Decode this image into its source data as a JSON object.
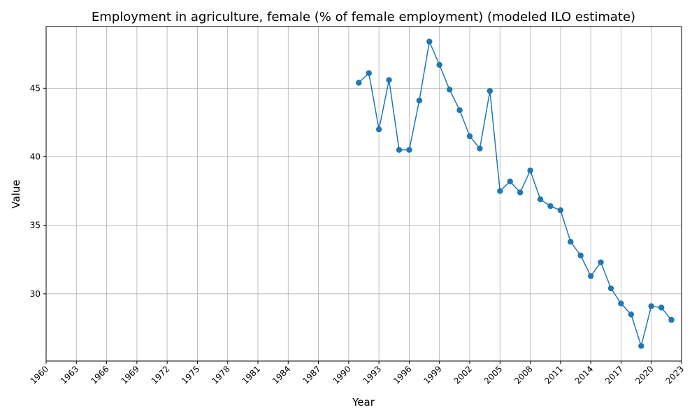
{
  "chart_data": {
    "type": "line",
    "title": "Employment in agriculture, female (% of female employment) (modeled ILO estimate)",
    "xlabel": "Year",
    "ylabel": "Value",
    "xlim": [
      1960,
      2023
    ],
    "ylim": [
      25.1,
      49.5
    ],
    "xticks": [
      1960,
      1963,
      1966,
      1969,
      1972,
      1975,
      1978,
      1981,
      1984,
      1987,
      1990,
      1993,
      1996,
      1999,
      2002,
      2005,
      2008,
      2011,
      2014,
      2017,
      2020,
      2023
    ],
    "yticks": [
      30,
      35,
      40,
      45
    ],
    "grid": true,
    "color": "#1f77b4",
    "series": [
      {
        "x": [
          1991,
          1992,
          1993,
          1994,
          1995,
          1996,
          1997,
          1998,
          1999,
          2000,
          2001,
          2002,
          2003,
          2004,
          2005,
          2006,
          2007,
          2008,
          2009,
          2010,
          2011,
          2012,
          2013,
          2014,
          2015,
          2016,
          2017,
          2018,
          2019,
          2020,
          2021,
          2022
        ],
        "values": [
          45.4,
          46.1,
          42.0,
          45.6,
          40.5,
          40.5,
          44.1,
          48.4,
          46.7,
          44.9,
          43.4,
          41.5,
          40.6,
          44.8,
          37.5,
          38.2,
          37.4,
          39.0,
          36.9,
          36.4,
          36.1,
          33.8,
          32.8,
          31.3,
          32.3,
          30.4,
          29.3,
          28.5,
          26.2,
          29.1,
          29.0,
          28.1
        ]
      }
    ]
  }
}
